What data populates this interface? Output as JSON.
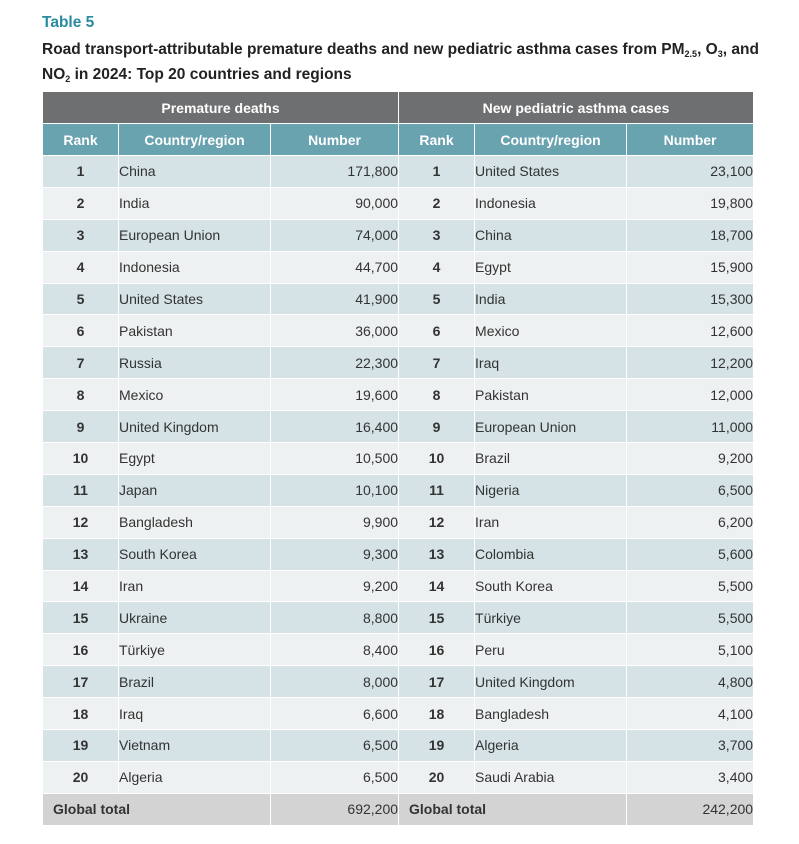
{
  "table_label": "Table 5",
  "caption": {
    "part1": "Road transport-attributable premature deaths and new pediatric asthma cases from PM",
    "sub1": "2.5",
    "part2": ", O",
    "sub2": "3",
    "part3": ", and NO",
    "sub3": "2",
    "part4": " in 2024: Top 20 countries and regions"
  },
  "groups": {
    "left": "Premature deaths",
    "right": "New pediatric asthma cases"
  },
  "columns": {
    "rank": "Rank",
    "country": "Country/region",
    "number": "Number"
  },
  "rows": [
    {
      "rank": "1",
      "deaths_country": "China",
      "deaths_number": "171,800",
      "asthma_country": "United States",
      "asthma_number": "23,100"
    },
    {
      "rank": "2",
      "deaths_country": "India",
      "deaths_number": "90,000",
      "asthma_country": "Indonesia",
      "asthma_number": "19,800"
    },
    {
      "rank": "3",
      "deaths_country": "European Union",
      "deaths_number": "74,000",
      "asthma_country": "China",
      "asthma_number": "18,700"
    },
    {
      "rank": "4",
      "deaths_country": "Indonesia",
      "deaths_number": "44,700",
      "asthma_country": "Egypt",
      "asthma_number": "15,900"
    },
    {
      "rank": "5",
      "deaths_country": "United States",
      "deaths_number": "41,900",
      "asthma_country": "India",
      "asthma_number": "15,300"
    },
    {
      "rank": "6",
      "deaths_country": "Pakistan",
      "deaths_number": "36,000",
      "asthma_country": "Mexico",
      "asthma_number": "12,600"
    },
    {
      "rank": "7",
      "deaths_country": "Russia",
      "deaths_number": "22,300",
      "asthma_country": "Iraq",
      "asthma_number": "12,200"
    },
    {
      "rank": "8",
      "deaths_country": "Mexico",
      "deaths_number": "19,600",
      "asthma_country": "Pakistan",
      "asthma_number": "12,000"
    },
    {
      "rank": "9",
      "deaths_country": "United Kingdom",
      "deaths_number": "16,400",
      "asthma_country": "European Union",
      "asthma_number": "11,000"
    },
    {
      "rank": "10",
      "deaths_country": "Egypt",
      "deaths_number": "10,500",
      "asthma_country": "Brazil",
      "asthma_number": "9,200"
    },
    {
      "rank": "11",
      "deaths_country": "Japan",
      "deaths_number": "10,100",
      "asthma_country": "Nigeria",
      "asthma_number": "6,500"
    },
    {
      "rank": "12",
      "deaths_country": "Bangladesh",
      "deaths_number": "9,900",
      "asthma_country": "Iran",
      "asthma_number": "6,200"
    },
    {
      "rank": "13",
      "deaths_country": "South Korea",
      "deaths_number": "9,300",
      "asthma_country": "Colombia",
      "asthma_number": "5,600"
    },
    {
      "rank": "14",
      "deaths_country": "Iran",
      "deaths_number": "9,200",
      "asthma_country": "South Korea",
      "asthma_number": "5,500"
    },
    {
      "rank": "15",
      "deaths_country": "Ukraine",
      "deaths_number": "8,800",
      "asthma_country": "Türkiye",
      "asthma_number": "5,500"
    },
    {
      "rank": "16",
      "deaths_country": "Türkiye",
      "deaths_number": "8,400",
      "asthma_country": "Peru",
      "asthma_number": "5,100"
    },
    {
      "rank": "17",
      "deaths_country": "Brazil",
      "deaths_number": "8,000",
      "asthma_country": "United Kingdom",
      "asthma_number": "4,800"
    },
    {
      "rank": "18",
      "deaths_country": "Iraq",
      "deaths_number": "6,600",
      "asthma_country": "Bangladesh",
      "asthma_number": "4,100"
    },
    {
      "rank": "19",
      "deaths_country": "Vietnam",
      "deaths_number": "6,500",
      "asthma_country": "Algeria",
      "asthma_number": "3,700"
    },
    {
      "rank": "20",
      "deaths_country": "Algeria",
      "deaths_number": "6,500",
      "asthma_country": "Saudi Arabia",
      "asthma_number": "3,400"
    }
  ],
  "totals": {
    "label": "Global total",
    "deaths": "692,200",
    "asthma": "242,200"
  },
  "colors": {
    "title_accent": "#2a8a9e",
    "group_header": "#6e6f71",
    "column_header": "#6aa3b0",
    "row_odd": "#d5e3e6",
    "row_even": "#eef1f2",
    "total_row": "#d3d3d3"
  }
}
